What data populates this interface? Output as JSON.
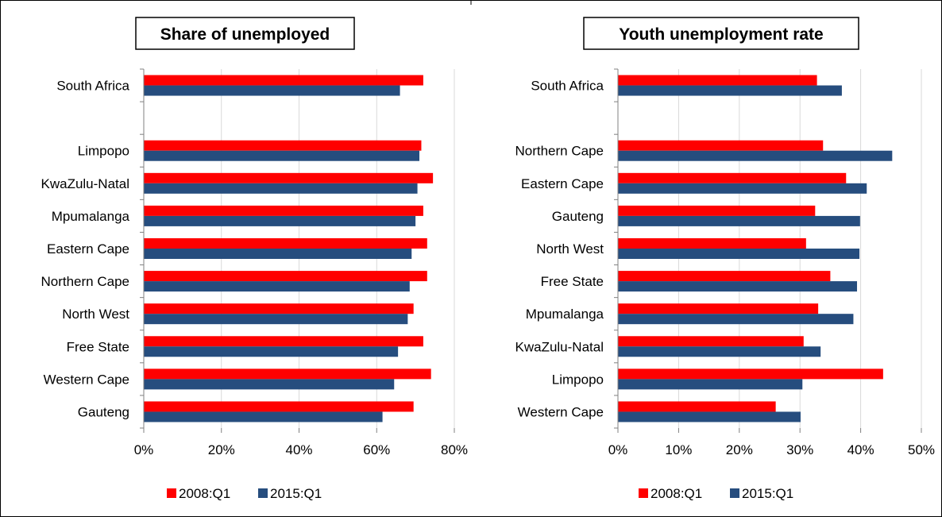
{
  "colors": {
    "series_2008": "#ff0000",
    "series_2015": "#264d7e",
    "grid": "#d9d9d9",
    "axis": "#808080"
  },
  "chart_data": [
    {
      "type": "bar",
      "orientation": "horizontal",
      "title": "Share of unemployed",
      "categories": [
        "South Africa",
        "",
        "Limpopo",
        "KwaZulu-Natal",
        "Mpumalanga",
        "Eastern Cape",
        "Northern Cape",
        "North West",
        "Free State",
        "Western Cape",
        "Gauteng"
      ],
      "series": [
        {
          "name": "2008:Q1",
          "values": [
            72,
            null,
            71.5,
            74.5,
            72,
            73,
            73,
            69.5,
            72,
            74,
            69.5
          ]
        },
        {
          "name": "2015:Q1",
          "values": [
            66,
            null,
            71,
            70.5,
            70,
            69,
            68.5,
            68,
            65.5,
            64.5,
            61.5
          ]
        }
      ],
      "xlim": [
        0,
        80
      ],
      "x_ticks": [
        "0%",
        "20%",
        "40%",
        "60%",
        "80%"
      ],
      "x_tick_values": [
        0,
        20,
        40,
        60,
        80
      ],
      "grid": true,
      "legend_position": "bottom"
    },
    {
      "type": "bar",
      "orientation": "horizontal",
      "title": "Youth unemployment rate",
      "categories": [
        "South Africa",
        "",
        "Northern Cape",
        "Eastern Cape",
        "Gauteng",
        "North West",
        "Free State",
        "Mpumalanga",
        "KwaZulu-Natal",
        "Limpopo",
        "Western Cape"
      ],
      "series": [
        {
          "name": "2008:Q1",
          "values": [
            32.8,
            null,
            33.8,
            37.6,
            32.5,
            31,
            35,
            33,
            30.6,
            43.7,
            26
          ]
        },
        {
          "name": "2015:Q1",
          "values": [
            36.9,
            null,
            45.2,
            41,
            39.9,
            39.8,
            39.4,
            38.8,
            33.4,
            30.4,
            30.1
          ]
        }
      ],
      "xlim": [
        0,
        50
      ],
      "x_ticks": [
        "0%",
        "10%",
        "20%",
        "30%",
        "40%",
        "50%"
      ],
      "x_tick_values": [
        0,
        10,
        20,
        30,
        40,
        50
      ],
      "grid": true,
      "legend_position": "bottom"
    }
  ]
}
